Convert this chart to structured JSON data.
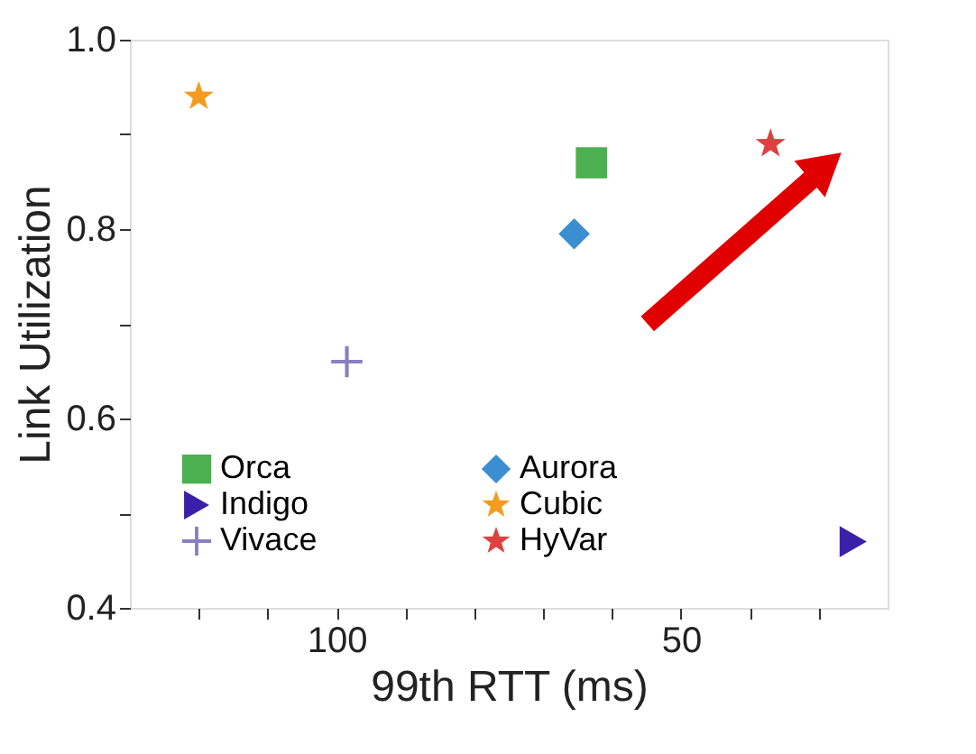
{
  "chart_data": {
    "type": "scatter",
    "xlabel": "99th  RTT (ms)",
    "ylabel": "Link Utilization",
    "xlim": [
      130,
      20
    ],
    "xticks": [
      {
        "value": 120,
        "label": null
      },
      {
        "value": 110,
        "label": null
      },
      100,
      {
        "value": 90,
        "label": null
      },
      {
        "value": 80,
        "label": null
      },
      {
        "value": 70,
        "label": null
      },
      {
        "value": 60,
        "label": null
      },
      50,
      {
        "value": 40,
        "label": null
      },
      {
        "value": 30,
        "label": null
      }
    ],
    "ylim": [
      0.4,
      1.0
    ],
    "yticks": [
      0.4,
      {
        "value": 0.5,
        "label": null
      },
      0.6,
      {
        "value": 0.7,
        "label": null
      },
      0.8,
      {
        "value": 0.9,
        "label": null
      },
      {
        "value": 1.0,
        "label": "1.0"
      }
    ],
    "grid": false,
    "legend": "bottom left",
    "series": [
      {
        "name": "Orca",
        "color": "#4caf50",
        "marker": "square",
        "x": [
          63
        ],
        "values": [
          0.87
        ]
      },
      {
        "name": "Indigo",
        "color": "#3a1fa8",
        "marker": "triangle",
        "x": [
          25
        ],
        "values": [
          0.47
        ]
      },
      {
        "name": "Vivace",
        "color": "#8a80c0",
        "marker": "cross",
        "x": [
          98.5
        ],
        "values": [
          0.66
        ]
      },
      {
        "name": "Aurora",
        "color": "#3b8fd0",
        "marker": "diamond",
        "x": [
          65.5
        ],
        "values": [
          0.795
        ]
      },
      {
        "name": "Cubic",
        "color": "#f39c1f",
        "marker": "star",
        "x": [
          120
        ],
        "values": [
          0.94
        ]
      },
      {
        "name": "HyVar",
        "color": "#e04040",
        "marker": "star",
        "x": [
          37
        ],
        "values": [
          0.89
        ]
      }
    ]
  }
}
